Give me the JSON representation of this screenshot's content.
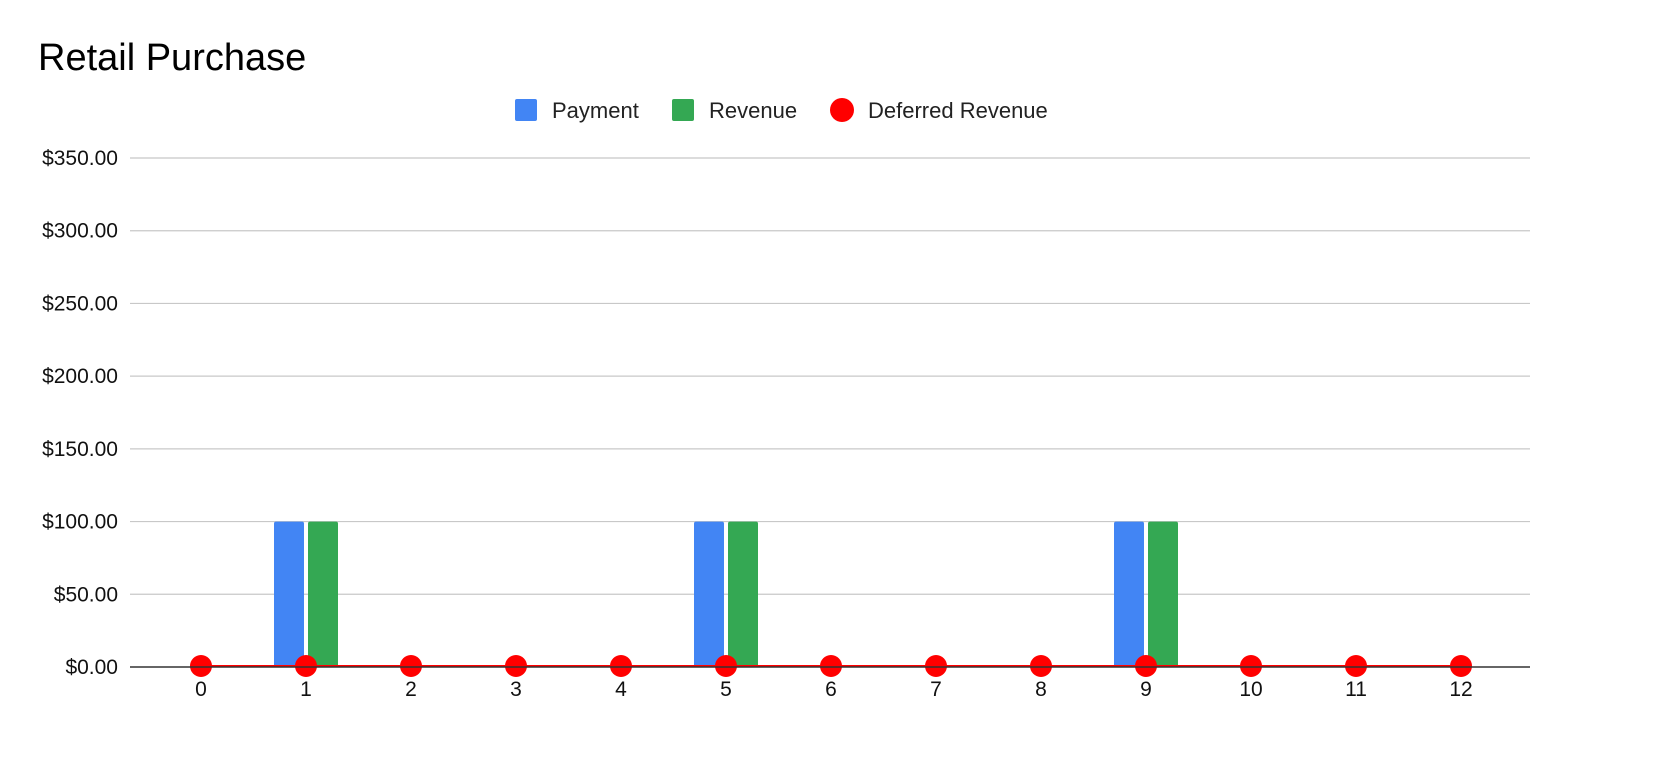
{
  "chart_data": {
    "type": "bar",
    "title": "Retail Purchase",
    "xlabel": "",
    "ylabel": "",
    "categories": [
      "0",
      "1",
      "2",
      "3",
      "4",
      "5",
      "6",
      "7",
      "8",
      "9",
      "10",
      "11",
      "12"
    ],
    "series": [
      {
        "name": "Payment",
        "type": "bar",
        "color": "#4285F4",
        "values": [
          0,
          100,
          0,
          0,
          0,
          100,
          0,
          0,
          0,
          100,
          0,
          0,
          0
        ]
      },
      {
        "name": "Revenue",
        "type": "bar",
        "color": "#34A853",
        "values": [
          0,
          100,
          0,
          0,
          0,
          100,
          0,
          0,
          0,
          100,
          0,
          0,
          0
        ]
      },
      {
        "name": "Deferred Revenue",
        "type": "line",
        "color": "#FF0000",
        "values": [
          0,
          0,
          0,
          0,
          0,
          0,
          0,
          0,
          0,
          0,
          0,
          0,
          0
        ]
      }
    ],
    "ylim": [
      0,
      350
    ],
    "yticks": [
      0,
      50,
      100,
      150,
      200,
      250,
      300,
      350
    ],
    "ytick_labels": [
      "$0.00",
      "$50.00",
      "$100.00",
      "$150.00",
      "$200.00",
      "$250.00",
      "$300.00",
      "$350.00"
    ],
    "grid": true,
    "legend_position": "top"
  }
}
